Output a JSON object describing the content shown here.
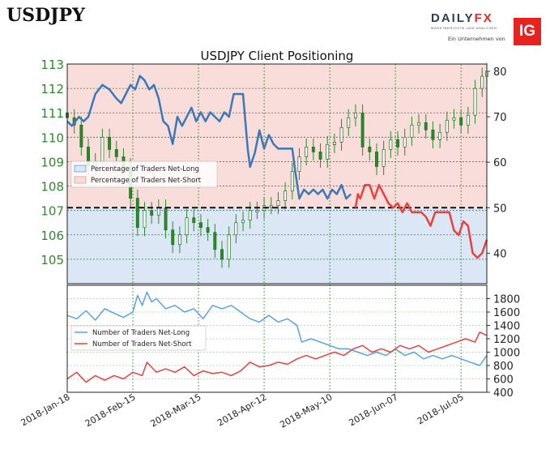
{
  "header": {
    "pair": "USDJPY",
    "brand_name_a": "DAILY",
    "brand_name_b": "FX",
    "brand_tagline": "MARKTBERICHTE UND ANALYSEN",
    "brand_sub": "Ein Unternehmen von",
    "ig_logo": "IG"
  },
  "colors": {
    "long_line": "#3a78b8",
    "short_line": "#e8413f",
    "count_long": "#5aa0e6",
    "count_short": "#e8413f",
    "long_fill": "#dbe7f5",
    "short_fill": "#f9ddda",
    "candle": "#2a8a2a"
  },
  "chart_data": [
    {
      "type": "line",
      "title": "USDJPY Client Positioning",
      "x_ticks": [
        "2018-Jan-18",
        "2018-Feb-15",
        "2018-Mar-15",
        "2018-Apr-12",
        "2018-May-10",
        "2018-Jun-07",
        "2018-Jul-05"
      ],
      "x_range": [
        "2018-01-18",
        "2018-07-16"
      ],
      "y_left_range": [
        104,
        113
      ],
      "y_left_ticks": [
        105,
        106,
        107,
        108,
        109,
        110,
        111,
        112,
        113
      ],
      "y_right_range": [
        33.3,
        81.6
      ],
      "y_right_ticks": [
        40,
        50,
        60,
        70,
        80
      ],
      "reference_line": 50,
      "grid": true,
      "legend": "left",
      "series": [
        {
          "name": "Percentage of Traders Net-Long",
          "axis": "right",
          "points": [
            [
              "2018-01-18",
              69
            ],
            [
              "2018-01-20",
              68
            ],
            [
              "2018-01-23",
              70
            ],
            [
              "2018-01-25",
              69
            ],
            [
              "2018-01-27",
              70
            ],
            [
              "2018-01-30",
              75
            ],
            [
              "2018-02-02",
              77
            ],
            [
              "2018-02-05",
              76
            ],
            [
              "2018-02-08",
              74
            ],
            [
              "2018-02-10",
              73
            ],
            [
              "2018-02-12",
              75
            ],
            [
              "2018-02-14",
              77
            ],
            [
              "2018-02-16",
              76
            ],
            [
              "2018-02-18",
              79
            ],
            [
              "2018-02-20",
              78
            ],
            [
              "2018-02-22",
              76
            ],
            [
              "2018-02-24",
              77
            ],
            [
              "2018-02-26",
              74
            ],
            [
              "2018-02-28",
              69
            ],
            [
              "2018-03-02",
              68
            ],
            [
              "2018-03-04",
              64
            ],
            [
              "2018-03-06",
              70
            ],
            [
              "2018-03-08",
              68
            ],
            [
              "2018-03-10",
              70
            ],
            [
              "2018-03-12",
              72
            ],
            [
              "2018-03-14",
              69
            ],
            [
              "2018-03-16",
              71
            ],
            [
              "2018-03-18",
              69
            ],
            [
              "2018-03-20",
              71
            ],
            [
              "2018-03-22",
              70
            ],
            [
              "2018-03-24",
              69
            ],
            [
              "2018-03-26",
              71
            ],
            [
              "2018-03-28",
              70
            ],
            [
              "2018-03-30",
              75
            ],
            [
              "2018-04-01",
              75
            ],
            [
              "2018-04-03",
              75
            ],
            [
              "2018-04-05",
              63
            ],
            [
              "2018-04-06",
              59
            ],
            [
              "2018-04-08",
              62
            ],
            [
              "2018-04-10",
              67
            ],
            [
              "2018-04-12",
              63
            ],
            [
              "2018-04-14",
              66
            ],
            [
              "2018-04-16",
              64
            ],
            [
              "2018-04-18",
              63
            ],
            [
              "2018-04-20",
              63
            ],
            [
              "2018-04-22",
              63
            ],
            [
              "2018-04-24",
              63
            ],
            [
              "2018-04-25",
              59
            ],
            [
              "2018-04-27",
              52
            ],
            [
              "2018-04-29",
              54
            ],
            [
              "2018-05-01",
              53
            ],
            [
              "2018-05-03",
              54
            ],
            [
              "2018-05-05",
              53
            ],
            [
              "2018-05-07",
              54
            ],
            [
              "2018-05-09",
              52
            ],
            [
              "2018-05-11",
              54
            ],
            [
              "2018-05-13",
              53
            ],
            [
              "2018-05-15",
              55
            ],
            [
              "2018-05-17",
              52
            ],
            [
              "2018-05-19",
              53
            ]
          ]
        },
        {
          "name": "Percentage of Traders Net-Short",
          "axis": "right",
          "points": [
            [
              "2018-05-21",
              50
            ],
            [
              "2018-05-22",
              53
            ],
            [
              "2018-05-23",
              52
            ],
            [
              "2018-05-25",
              55
            ],
            [
              "2018-05-27",
              55
            ],
            [
              "2018-05-29",
              52
            ],
            [
              "2018-05-31",
              55
            ],
            [
              "2018-06-02",
              53
            ],
            [
              "2018-06-04",
              51
            ],
            [
              "2018-06-06",
              50
            ],
            [
              "2018-06-08",
              51
            ],
            [
              "2018-06-10",
              49
            ],
            [
              "2018-06-12",
              51
            ],
            [
              "2018-06-14",
              49
            ],
            [
              "2018-06-16",
              49
            ],
            [
              "2018-06-18",
              49
            ],
            [
              "2018-06-20",
              48
            ],
            [
              "2018-06-22",
              46
            ],
            [
              "2018-06-24",
              49
            ],
            [
              "2018-06-26",
              49
            ],
            [
              "2018-06-28",
              49
            ],
            [
              "2018-06-30",
              49
            ],
            [
              "2018-07-02",
              45
            ],
            [
              "2018-07-04",
              44
            ],
            [
              "2018-07-06",
              47
            ],
            [
              "2018-07-08",
              46
            ],
            [
              "2018-07-10",
              40
            ],
            [
              "2018-07-12",
              39
            ],
            [
              "2018-07-14",
              40
            ],
            [
              "2018-07-16",
              43
            ]
          ]
        }
      ],
      "price_candles_mid": [
        [
          "2018-01-18",
          110.8
        ],
        [
          "2018-01-21",
          110.5
        ],
        [
          "2018-01-24",
          109.6
        ],
        [
          "2018-01-27",
          108.8
        ],
        [
          "2018-01-30",
          109.0
        ],
        [
          "2018-02-02",
          110.0
        ],
        [
          "2018-02-05",
          109.5
        ],
        [
          "2018-02-08",
          109.2
        ],
        [
          "2018-02-11",
          108.8
        ],
        [
          "2018-02-14",
          107.5
        ],
        [
          "2018-02-17",
          106.3
        ],
        [
          "2018-02-20",
          107.0
        ],
        [
          "2018-02-23",
          106.8
        ],
        [
          "2018-02-26",
          107.1
        ],
        [
          "2018-03-01",
          106.2
        ],
        [
          "2018-03-04",
          105.6
        ],
        [
          "2018-03-07",
          106.0
        ],
        [
          "2018-03-10",
          106.7
        ],
        [
          "2018-03-13",
          106.5
        ],
        [
          "2018-03-16",
          106.3
        ],
        [
          "2018-03-19",
          106.1
        ],
        [
          "2018-03-22",
          105.4
        ],
        [
          "2018-03-25",
          105.0
        ],
        [
          "2018-03-28",
          106.0
        ],
        [
          "2018-03-31",
          106.5
        ],
        [
          "2018-04-03",
          106.6
        ],
        [
          "2018-04-06",
          107.0
        ],
        [
          "2018-04-09",
          107.0
        ],
        [
          "2018-04-12",
          107.2
        ],
        [
          "2018-04-15",
          107.2
        ],
        [
          "2018-04-18",
          107.4
        ],
        [
          "2018-04-21",
          107.8
        ],
        [
          "2018-04-24",
          108.6
        ],
        [
          "2018-04-27",
          109.2
        ],
        [
          "2018-04-30",
          109.6
        ],
        [
          "2018-05-03",
          109.4
        ],
        [
          "2018-05-06",
          109.1
        ],
        [
          "2018-05-09",
          109.7
        ],
        [
          "2018-05-12",
          109.8
        ],
        [
          "2018-05-15",
          110.4
        ],
        [
          "2018-05-18",
          110.8
        ],
        [
          "2018-05-21",
          111.0
        ],
        [
          "2018-05-24",
          109.6
        ],
        [
          "2018-05-27",
          109.4
        ],
        [
          "2018-05-30",
          108.8
        ],
        [
          "2018-06-02",
          109.5
        ],
        [
          "2018-06-05",
          109.9
        ],
        [
          "2018-06-08",
          109.6
        ],
        [
          "2018-06-11",
          110.0
        ],
        [
          "2018-06-14",
          110.5
        ],
        [
          "2018-06-17",
          110.6
        ],
        [
          "2018-06-20",
          110.3
        ],
        [
          "2018-06-23",
          109.9
        ],
        [
          "2018-06-26",
          110.2
        ],
        [
          "2018-06-29",
          110.7
        ],
        [
          "2018-07-02",
          110.8
        ],
        [
          "2018-07-05",
          110.5
        ],
        [
          "2018-07-08",
          110.9
        ],
        [
          "2018-07-11",
          112.0
        ],
        [
          "2018-07-14",
          112.5
        ],
        [
          "2018-07-16",
          112.7
        ]
      ]
    },
    {
      "type": "line",
      "y_range": [
        400,
        2000
      ],
      "y_ticks": [
        400,
        600,
        800,
        1000,
        1200,
        1400,
        1600,
        1800
      ],
      "legend": "left",
      "series": [
        {
          "name": "Number of Traders Net-Long",
          "points": [
            [
              "2018-01-18",
              1550
            ],
            [
              "2018-01-22",
              1500
            ],
            [
              "2018-01-26",
              1620
            ],
            [
              "2018-01-30",
              1480
            ],
            [
              "2018-02-03",
              1650
            ],
            [
              "2018-02-07",
              1580
            ],
            [
              "2018-02-11",
              1520
            ],
            [
              "2018-02-15",
              1600
            ],
            [
              "2018-02-17",
              1850
            ],
            [
              "2018-02-19",
              1700
            ],
            [
              "2018-02-21",
              1900
            ],
            [
              "2018-02-23",
              1750
            ],
            [
              "2018-02-25",
              1800
            ],
            [
              "2018-03-01",
              1650
            ],
            [
              "2018-03-05",
              1700
            ],
            [
              "2018-03-09",
              1600
            ],
            [
              "2018-03-13",
              1650
            ],
            [
              "2018-03-17",
              1500
            ],
            [
              "2018-03-21",
              1700
            ],
            [
              "2018-03-25",
              1650
            ],
            [
              "2018-03-29",
              1700
            ],
            [
              "2018-04-02",
              1600
            ],
            [
              "2018-04-06",
              1500
            ],
            [
              "2018-04-10",
              1450
            ],
            [
              "2018-04-14",
              1550
            ],
            [
              "2018-04-18",
              1450
            ],
            [
              "2018-04-22",
              1500
            ],
            [
              "2018-04-26",
              1400
            ],
            [
              "2018-04-28",
              1150
            ],
            [
              "2018-05-02",
              1200
            ],
            [
              "2018-05-06",
              1150
            ],
            [
              "2018-05-10",
              1100
            ],
            [
              "2018-05-14",
              1050
            ],
            [
              "2018-05-18",
              1050
            ],
            [
              "2018-05-22",
              1000
            ],
            [
              "2018-05-26",
              950
            ],
            [
              "2018-05-30",
              1000
            ],
            [
              "2018-06-03",
              950
            ],
            [
              "2018-06-07",
              1050
            ],
            [
              "2018-06-11",
              950
            ],
            [
              "2018-06-15",
              1000
            ],
            [
              "2018-06-19",
              900
            ],
            [
              "2018-06-23",
              950
            ],
            [
              "2018-06-27",
              900
            ],
            [
              "2018-07-01",
              950
            ],
            [
              "2018-07-05",
              900
            ],
            [
              "2018-07-09",
              850
            ],
            [
              "2018-07-13",
              800
            ],
            [
              "2018-07-16",
              950
            ]
          ]
        },
        {
          "name": "Number of Traders Net-Short",
          "points": [
            [
              "2018-01-18",
              600
            ],
            [
              "2018-01-22",
              700
            ],
            [
              "2018-01-26",
              550
            ],
            [
              "2018-01-30",
              650
            ],
            [
              "2018-02-03",
              580
            ],
            [
              "2018-02-07",
              650
            ],
            [
              "2018-02-11",
              600
            ],
            [
              "2018-02-15",
              700
            ],
            [
              "2018-02-19",
              650
            ],
            [
              "2018-02-21",
              850
            ],
            [
              "2018-02-25",
              700
            ],
            [
              "2018-03-01",
              750
            ],
            [
              "2018-03-05",
              700
            ],
            [
              "2018-03-09",
              780
            ],
            [
              "2018-03-13",
              650
            ],
            [
              "2018-03-17",
              720
            ],
            [
              "2018-03-21",
              680
            ],
            [
              "2018-03-25",
              700
            ],
            [
              "2018-03-29",
              650
            ],
            [
              "2018-04-02",
              720
            ],
            [
              "2018-04-06",
              850
            ],
            [
              "2018-04-10",
              780
            ],
            [
              "2018-04-14",
              800
            ],
            [
              "2018-04-18",
              850
            ],
            [
              "2018-04-22",
              820
            ],
            [
              "2018-04-26",
              900
            ],
            [
              "2018-04-30",
              950
            ],
            [
              "2018-05-04",
              900
            ],
            [
              "2018-05-08",
              950
            ],
            [
              "2018-05-12",
              1000
            ],
            [
              "2018-05-16",
              950
            ],
            [
              "2018-05-20",
              1050
            ],
            [
              "2018-05-24",
              1100
            ],
            [
              "2018-05-28",
              1000
            ],
            [
              "2018-06-01",
              1050
            ],
            [
              "2018-06-05",
              1000
            ],
            [
              "2018-06-09",
              1100
            ],
            [
              "2018-06-13",
              1050
            ],
            [
              "2018-06-17",
              1100
            ],
            [
              "2018-06-21",
              1000
            ],
            [
              "2018-06-25",
              1050
            ],
            [
              "2018-06-29",
              1100
            ],
            [
              "2018-07-03",
              1150
            ],
            [
              "2018-07-07",
              1200
            ],
            [
              "2018-07-11",
              1150
            ],
            [
              "2018-07-13",
              1300
            ],
            [
              "2018-07-16",
              1250
            ]
          ]
        }
      ]
    }
  ]
}
